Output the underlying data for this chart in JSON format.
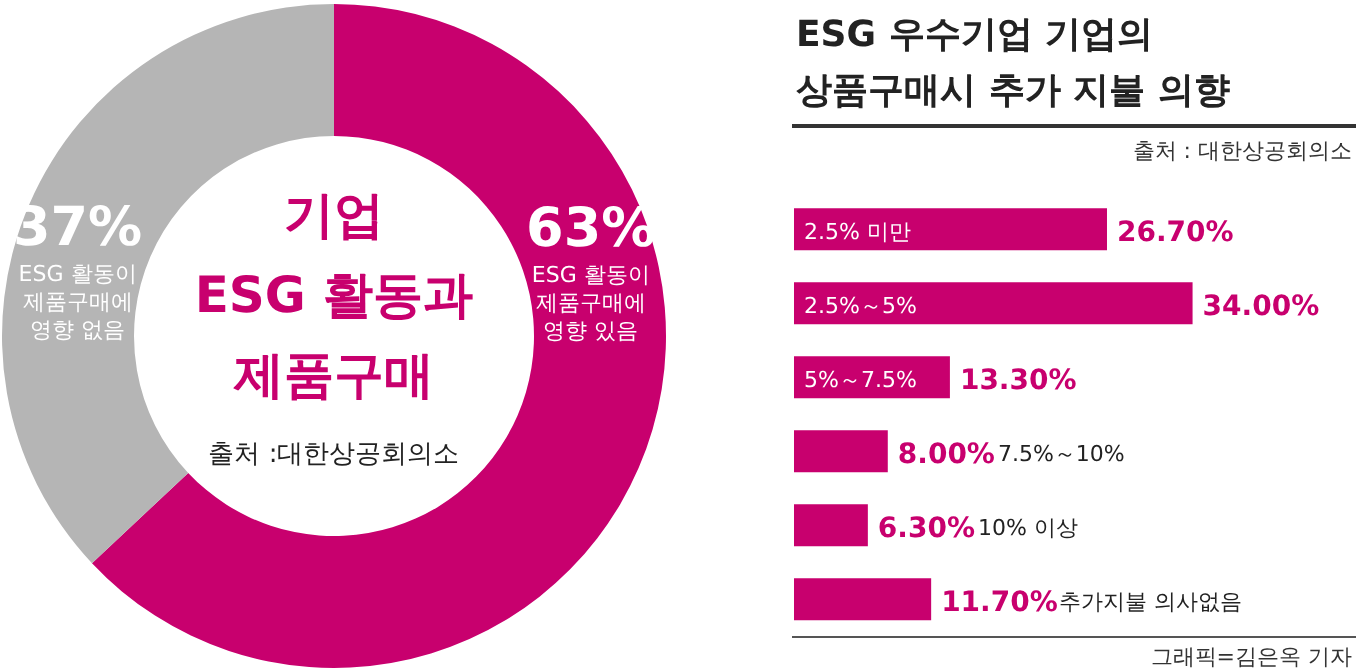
{
  "chart_data": [
    {
      "type": "donut",
      "title": "기업\nESG 활동과\n제품구매",
      "categories": [
        "ESG 활동이\n제품구매에\n영향 있음",
        "ESG 활동이\n제품구매에\n영향 없음"
      ],
      "values": [
        63,
        37
      ],
      "colors": [
        "#c8006e",
        "#b5b5b5"
      ],
      "value_labels": [
        "63%",
        "37%"
      ],
      "annotations": [
        "출처 :대한상공회의소"
      ]
    },
    {
      "type": "bar",
      "orientation": "horizontal",
      "title": "ESG 우수기업 기업의\n상품구매시 추가 지불 의향",
      "categories": [
        "2.5% 미만",
        "2.5%～5%",
        "5%～7.5%",
        "7.5%～10%",
        "10% 이상",
        "추가지불 의사없음"
      ],
      "values": [
        26.7,
        34.0,
        13.3,
        8.0,
        6.3,
        11.7
      ],
      "color": "#c8006e",
      "value_labels": [
        "26.70%",
        "34.00%",
        "13.30%",
        "8.00%",
        "6.30%",
        "11.70%"
      ],
      "tick_labels": false,
      "annotations": [
        "출처 : 대한상공회의소",
        "그래픽=김은옥 기자"
      ]
    }
  ]
}
